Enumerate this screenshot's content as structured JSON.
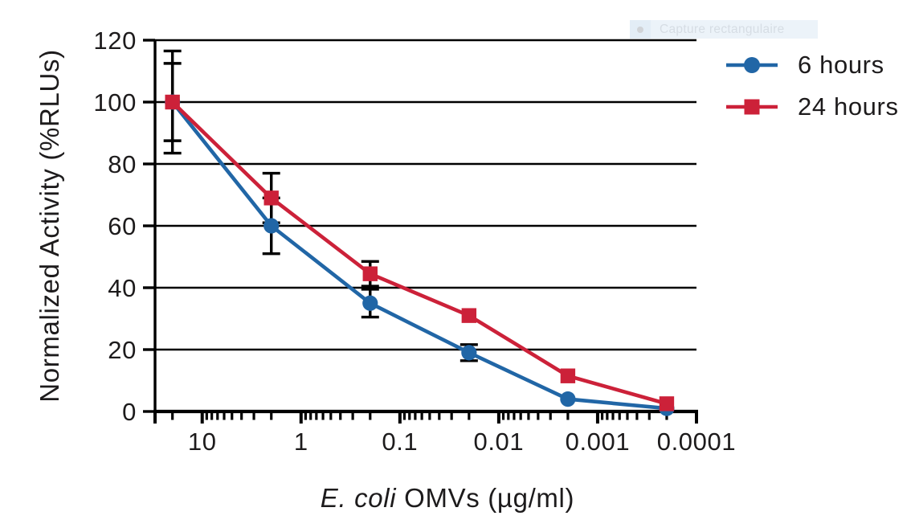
{
  "overlay": {
    "label": "Capture rectangulaire",
    "bar_bg": "#ecf3f9",
    "icon_bg": "#e3edf6",
    "dot_color": "#d0d3d7",
    "text_color": "#d6dde4"
  },
  "chart_data": {
    "type": "line",
    "title": "",
    "xlabel": "E. coli OMVs (µg/ml)",
    "xlabel_italic": "E. coli",
    "xlabel_rest": " OMVs (µg/ml)",
    "ylabel": "Normalized Activity (%RLUs)",
    "x_scale": "log-reversed",
    "x_domain": [
      30,
      0.0001
    ],
    "x_major_ticks": [
      10,
      1,
      0.1,
      0.01,
      0.001,
      0.0001
    ],
    "x_tick_labels": [
      "10",
      "1",
      "0.1",
      "0.01",
      "0.001",
      "0.0001"
    ],
    "y_domain": [
      0,
      120
    ],
    "y_ticks": [
      0,
      20,
      40,
      60,
      80,
      100,
      120
    ],
    "y_tick_labels": [
      "0",
      "20",
      "40",
      "60",
      "80",
      "100",
      "120"
    ],
    "grid": "horizontal",
    "legend_position": "top-right",
    "axis_color": "#000000",
    "error_bar_color": "#000000",
    "x": [
      20,
      2,
      0.2,
      0.02,
      0.002,
      0.0002
    ],
    "series": [
      {
        "name": "6 hours",
        "color": "#2166a6",
        "marker": "circle",
        "values": [
          100,
          60,
          35,
          19,
          4,
          1
        ],
        "errors": [
          12.5,
          9,
          4.5,
          2.6,
          0,
          0
        ]
      },
      {
        "name": "24 hours",
        "color": "#cc2139",
        "marker": "square",
        "values": [
          100,
          69,
          44.5,
          31,
          11.5,
          2.5
        ],
        "errors": [
          16.5,
          8,
          4,
          0,
          0,
          0
        ]
      }
    ]
  }
}
